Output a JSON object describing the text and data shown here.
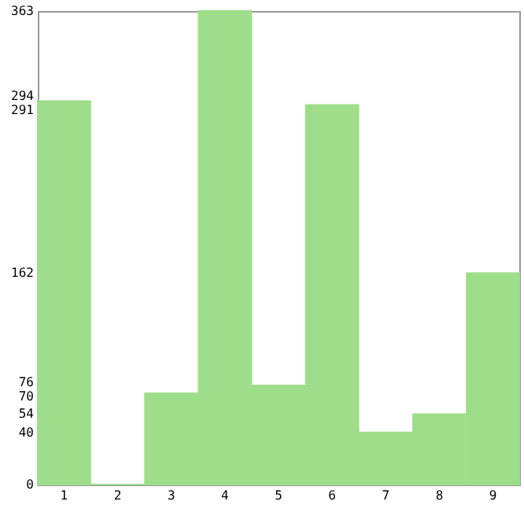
{
  "chart_data": {
    "type": "bar",
    "categories": [
      "1",
      "2",
      "3",
      "4",
      "5",
      "6",
      "7",
      "8",
      "9"
    ],
    "values": [
      294,
      0,
      70,
      363,
      76,
      291,
      40,
      54,
      162
    ],
    "color": "#9ede8a",
    "ylim": [
      0,
      363
    ],
    "yticks": [
      0,
      40,
      54,
      70,
      76,
      162,
      291,
      294,
      363
    ],
    "grid": false
  }
}
